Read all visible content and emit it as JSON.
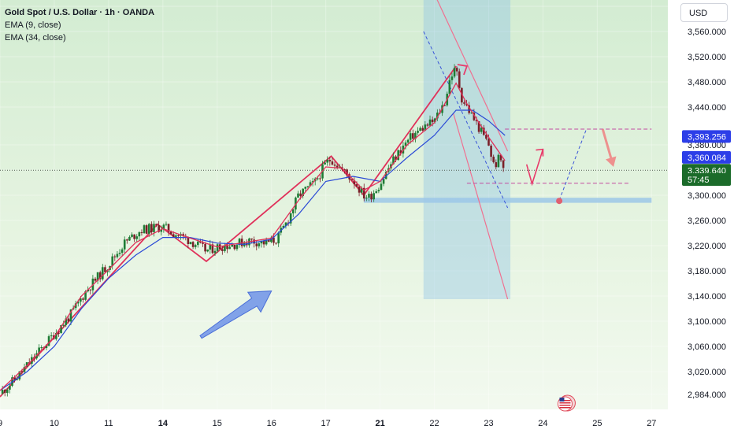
{
  "header": {
    "title": "Gold Spot / U.S. Dollar · 1h · OANDA",
    "ema_fast": "EMA (9, close)",
    "ema_slow": "EMA (34, close)"
  },
  "currency_button": "USD",
  "icons": {
    "flag_icon": "us-flag-icon"
  },
  "colors": {
    "ema_fast": "#e0315a",
    "ema_slow": "#2a49d6",
    "candle_up": "#1e7b35",
    "candle_down": "#7a1f28",
    "annotation": "#e83a6a",
    "arrow_blue": "#6f93e8",
    "badge_blue": "#2c3ee8",
    "badge_green": "#1b6b2a",
    "support_zone": "#9cc7e8"
  },
  "chart_data": {
    "type": "candlestick",
    "symbol": "XAUUSD",
    "timeframe": "1h",
    "y_axis": {
      "ticks": [
        2984,
        3020,
        3060,
        3100,
        3140,
        3180,
        3220,
        3260,
        3300,
        3340,
        3380,
        3440,
        3480,
        3520,
        3560,
        3600
      ],
      "tick_labels": [
        "2,984.000",
        "3,020.000",
        "3,060.000",
        "3,100.000",
        "3,140.000",
        "3,180.000",
        "3,220.000",
        "3,260.000",
        "3,300.000",
        "3,340.000",
        "3,380.000",
        "3,440.000",
        "3,480.000",
        "3,520.000",
        "3,560.000",
        "3,600.000"
      ],
      "range": [
        2960,
        3610
      ]
    },
    "x_axis": {
      "tick_labels": [
        "9",
        "10",
        "11",
        "14",
        "15",
        "16",
        "17",
        "21",
        "22",
        "23",
        "24",
        "25",
        "27"
      ],
      "tick_positions": [
        0,
        1,
        2,
        3,
        4,
        5,
        6,
        7,
        8,
        9,
        10,
        11,
        12
      ],
      "bold_labels": [
        "14",
        "21"
      ],
      "range": [
        0,
        12.3
      ]
    },
    "price_path": [
      [
        0.0,
        2985
      ],
      [
        0.3,
        3010
      ],
      [
        0.6,
        3040
      ],
      [
        1.0,
        3080
      ],
      [
        1.3,
        3110
      ],
      [
        1.6,
        3150
      ],
      [
        2.0,
        3190
      ],
      [
        2.3,
        3225
      ],
      [
        2.6,
        3245
      ],
      [
        3.0,
        3250
      ],
      [
        3.2,
        3240
      ],
      [
        3.5,
        3228
      ],
      [
        3.8,
        3212
      ],
      [
        4.0,
        3218
      ],
      [
        4.3,
        3222
      ],
      [
        4.6,
        3228
      ],
      [
        4.9,
        3224
      ],
      [
        5.1,
        3230
      ],
      [
        5.3,
        3260
      ],
      [
        5.5,
        3300
      ],
      [
        5.8,
        3320
      ],
      [
        6.0,
        3350
      ],
      [
        6.1,
        3358
      ],
      [
        6.3,
        3340
      ],
      [
        6.5,
        3325
      ],
      [
        6.7,
        3300
      ],
      [
        6.8,
        3297
      ],
      [
        7.0,
        3318
      ],
      [
        7.2,
        3350
      ],
      [
        7.4,
        3375
      ],
      [
        7.6,
        3395
      ],
      [
        7.8,
        3408
      ],
      [
        8.0,
        3418
      ],
      [
        8.2,
        3450
      ],
      [
        8.3,
        3490
      ],
      [
        8.4,
        3500
      ],
      [
        8.5,
        3455
      ],
      [
        8.6,
        3440
      ],
      [
        8.8,
        3410
      ],
      [
        9.0,
        3380
      ],
      [
        9.1,
        3345
      ],
      [
        9.2,
        3360
      ],
      [
        9.3,
        3339.64
      ]
    ],
    "ema_fast_path": [
      [
        0.0,
        2990
      ],
      [
        0.5,
        3030
      ],
      [
        1.0,
        3075
      ],
      [
        1.5,
        3140
      ],
      [
        2.0,
        3182
      ],
      [
        2.5,
        3225
      ],
      [
        3.0,
        3247
      ],
      [
        3.5,
        3232
      ],
      [
        4.0,
        3218
      ],
      [
        4.5,
        3225
      ],
      [
        5.0,
        3232
      ],
      [
        5.5,
        3292
      ],
      [
        6.0,
        3345
      ],
      [
        6.3,
        3343
      ],
      [
        6.7,
        3308
      ],
      [
        7.0,
        3322
      ],
      [
        7.5,
        3380
      ],
      [
        8.0,
        3415
      ],
      [
        8.4,
        3478
      ],
      [
        8.6,
        3445
      ],
      [
        8.8,
        3418
      ],
      [
        9.0,
        3392
      ],
      [
        9.3,
        3355
      ]
    ],
    "ema_slow_path": [
      [
        0.0,
        2990
      ],
      [
        0.5,
        3020
      ],
      [
        1.0,
        3060
      ],
      [
        1.5,
        3120
      ],
      [
        2.0,
        3168
      ],
      [
        2.5,
        3205
      ],
      [
        3.0,
        3233
      ],
      [
        3.5,
        3233
      ],
      [
        4.0,
        3224
      ],
      [
        4.5,
        3222
      ],
      [
        5.0,
        3230
      ],
      [
        5.5,
        3270
      ],
      [
        6.0,
        3322
      ],
      [
        6.5,
        3330
      ],
      [
        7.0,
        3322
      ],
      [
        7.5,
        3360
      ],
      [
        8.0,
        3395
      ],
      [
        8.4,
        3435
      ],
      [
        8.7,
        3435
      ],
      [
        9.0,
        3418
      ],
      [
        9.3,
        3395
      ]
    ],
    "price_labels": [
      {
        "label": "3,393.256",
        "value": 3393.256,
        "series": "ema_slow"
      },
      {
        "label": "3,360.084",
        "value": 3360.084,
        "series": "ema_fast"
      },
      {
        "label": "3,339.640",
        "value": 3339.64,
        "series": "price"
      },
      {
        "label": "57:45",
        "value": 3325,
        "series": "countdown"
      }
    ],
    "current_price": 3339.64,
    "countdown": "57:45",
    "annotations": {
      "support_zone": {
        "x_start": 6.7,
        "x_end": 12.0,
        "low": 3288,
        "high": 3296
      },
      "resistance_line": {
        "x_start": 9.3,
        "x_end": 12.0,
        "value": 3405
      },
      "lower_dashed_line": {
        "x_start": 8.6,
        "x_end": 11.6,
        "value": 3319
      },
      "channel_box": {
        "x_start": 7.8,
        "x_end": 9.4,
        "top": 3615,
        "bottom": 3135
      },
      "channel_upper_line": [
        [
          8.0,
          3620
        ],
        [
          9.35,
          3370
        ]
      ],
      "channel_lower_line": [
        [
          8.35,
          3430
        ],
        [
          9.35,
          3135
        ]
      ],
      "inner_dashed_line": [
        [
          7.8,
          3560
        ],
        [
          9.35,
          3280
        ]
      ],
      "zigzag": [
        [
          0.0,
          2980
        ],
        [
          2.9,
          3254
        ],
        [
          3.8,
          3195
        ],
        [
          6.1,
          3362
        ],
        [
          6.7,
          3300
        ],
        [
          8.4,
          3505
        ]
      ],
      "arrow_head_up": [
        8.6,
        3505
      ],
      "projection_solid": [
        [
          9.7,
          3349
        ],
        [
          9.8,
          3318
        ],
        [
          10.0,
          3373
        ]
      ],
      "projection_dashed": [
        [
          10.3,
          3292
        ],
        [
          10.8,
          3405
        ]
      ],
      "projection_arrow_down": [
        [
          11.1,
          3405
        ],
        [
          11.3,
          3345
        ]
      ],
      "marker_point": [
        10.3,
        3291
      ],
      "big_arrow_start": [
        3.7,
        3075
      ],
      "big_arrow_end": [
        5.0,
        3148
      ]
    }
  }
}
